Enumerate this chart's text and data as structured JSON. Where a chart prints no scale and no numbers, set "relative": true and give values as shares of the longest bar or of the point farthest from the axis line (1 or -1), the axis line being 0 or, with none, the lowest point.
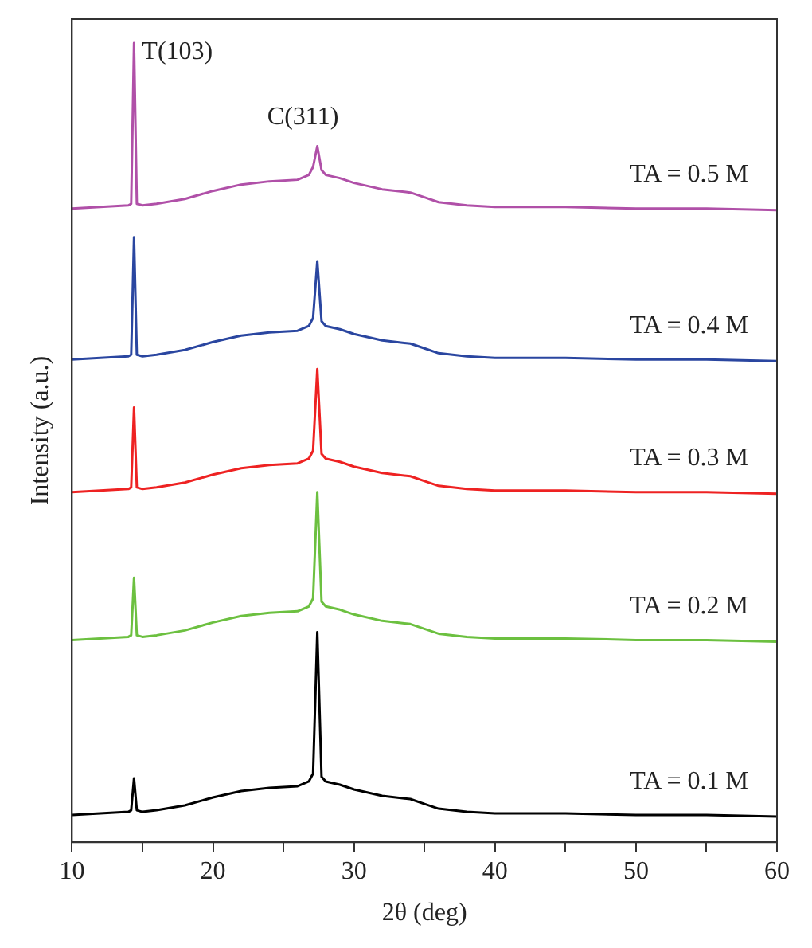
{
  "chart_data": {
    "type": "line",
    "relative": true,
    "xlabel": "2θ (deg)",
    "ylabel": "Intensity (a.u.)",
    "marker": "none",
    "x": [
      10,
      12,
      14,
      14.2,
      14.4,
      14.6,
      15,
      16,
      18,
      20,
      22,
      24,
      26,
      26.8,
      27.1,
      27.4,
      27.7,
      28,
      29,
      30,
      32,
      34,
      35,
      36,
      38,
      40,
      45,
      50,
      55,
      60
    ],
    "xlim": [
      10,
      60
    ],
    "xticks": [
      10,
      {
        "value": 15,
        "label": null
      },
      20,
      {
        "value": 25,
        "label": null
      },
      30,
      {
        "value": 35,
        "label": null
      },
      40,
      {
        "value": 45,
        "label": null
      },
      50,
      {
        "value": 55,
        "label": null
      },
      60
    ],
    "annotations": [
      {
        "text": "T(103)",
        "x": 14.4,
        "y": 1.0
      },
      {
        "text": "C(311)",
        "x": 27.4,
        "y": 0.871
      }
    ],
    "series": [
      {
        "name": "TA = 0.5 M",
        "color": "#b050a8",
        "values": [
          0.793,
          0.795,
          0.797,
          0.799,
          1.0,
          0.799,
          0.797,
          0.799,
          0.805,
          0.815,
          0.823,
          0.827,
          0.829,
          0.835,
          0.845,
          0.871,
          0.841,
          0.835,
          0.831,
          0.825,
          0.817,
          0.813,
          0.807,
          0.801,
          0.797,
          0.795,
          0.795,
          0.793,
          0.793,
          0.791
        ]
      },
      {
        "name": "TA = 0.4 M",
        "color": "#2a46a0",
        "values": [
          0.604,
          0.606,
          0.608,
          0.61,
          0.757,
          0.61,
          0.608,
          0.61,
          0.616,
          0.626,
          0.634,
          0.638,
          0.64,
          0.646,
          0.656,
          0.727,
          0.652,
          0.646,
          0.642,
          0.636,
          0.628,
          0.624,
          0.618,
          0.612,
          0.608,
          0.606,
          0.606,
          0.604,
          0.604,
          0.602
        ]
      },
      {
        "name": "TA = 0.3 M",
        "color": "#ee2222",
        "values": [
          0.438,
          0.44,
          0.442,
          0.444,
          0.544,
          0.444,
          0.442,
          0.444,
          0.45,
          0.46,
          0.468,
          0.472,
          0.474,
          0.48,
          0.49,
          0.592,
          0.486,
          0.48,
          0.476,
          0.47,
          0.462,
          0.458,
          0.452,
          0.446,
          0.442,
          0.44,
          0.44,
          0.438,
          0.438,
          0.436
        ]
      },
      {
        "name": "TA = 0.2 M",
        "color": "#6cc040",
        "values": [
          0.253,
          0.255,
          0.257,
          0.259,
          0.331,
          0.259,
          0.257,
          0.259,
          0.265,
          0.275,
          0.283,
          0.287,
          0.289,
          0.295,
          0.305,
          0.438,
          0.301,
          0.295,
          0.291,
          0.285,
          0.277,
          0.273,
          0.267,
          0.261,
          0.257,
          0.255,
          0.255,
          0.253,
          0.253,
          0.251
        ]
      },
      {
        "name": "TA = 0.1 M",
        "color": "#000000",
        "values": [
          0.034,
          0.036,
          0.038,
          0.04,
          0.08,
          0.04,
          0.038,
          0.04,
          0.046,
          0.056,
          0.064,
          0.068,
          0.07,
          0.076,
          0.086,
          0.263,
          0.082,
          0.076,
          0.072,
          0.066,
          0.058,
          0.054,
          0.048,
          0.042,
          0.038,
          0.036,
          0.036,
          0.034,
          0.034,
          0.032
        ]
      }
    ]
  }
}
